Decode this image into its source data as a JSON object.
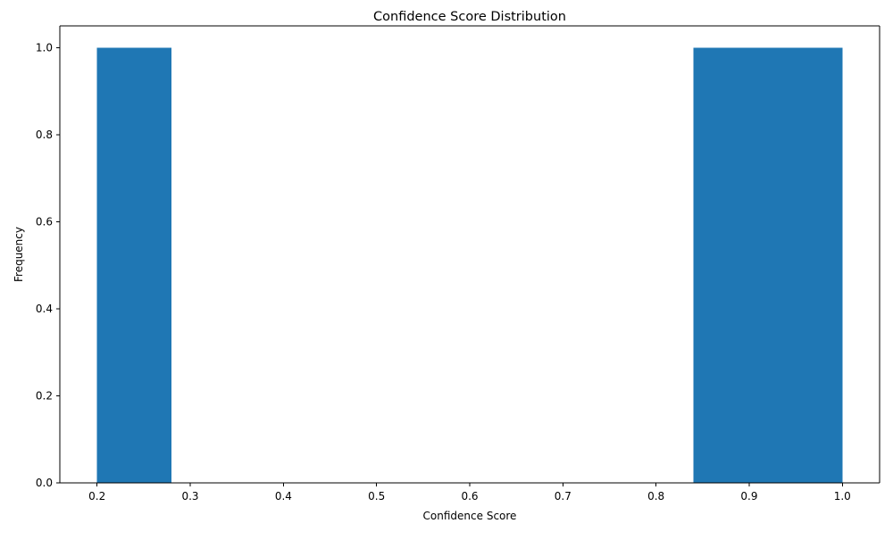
{
  "chart_data": {
    "type": "bar",
    "subtype": "histogram",
    "title": "Confidence Score Distribution",
    "xlabel": "Confidence Score",
    "ylabel": "Frequency",
    "xlim": [
      0.16,
      1.04
    ],
    "ylim": [
      0,
      1.05
    ],
    "xticks": [
      0.2,
      0.3,
      0.4,
      0.5,
      0.6,
      0.7,
      0.8,
      0.9,
      1.0
    ],
    "xtick_labels": [
      "0.2",
      "0.3",
      "0.4",
      "0.5",
      "0.6",
      "0.7",
      "0.8",
      "0.9",
      "1.0"
    ],
    "yticks": [
      0.0,
      0.2,
      0.4,
      0.6,
      0.8,
      1.0
    ],
    "ytick_labels": [
      "0.0",
      "0.2",
      "0.4",
      "0.6",
      "0.8",
      "1.0"
    ],
    "bars": [
      {
        "x0": 0.2,
        "x1": 0.28,
        "value": 1.0
      },
      {
        "x0": 0.84,
        "x1": 0.92,
        "value": 1.0
      },
      {
        "x0": 0.92,
        "x1": 1.0,
        "value": 1.0
      }
    ],
    "bar_color": "#1f77b4",
    "grid": false,
    "legend": "none"
  }
}
